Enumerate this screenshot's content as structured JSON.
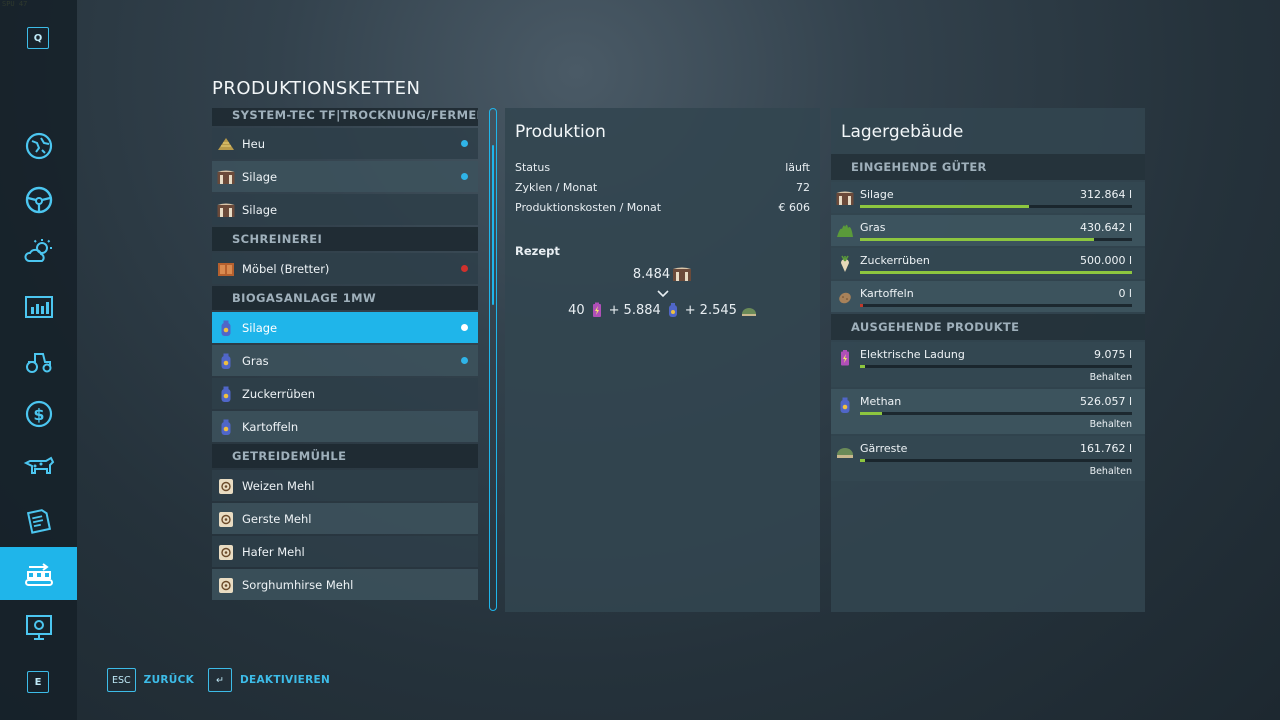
{
  "fps_overlay": "47",
  "sidebar": {
    "top_key": "Q",
    "bottom_key": "E",
    "items": [
      {
        "icon": "map-icon"
      },
      {
        "icon": "steering-wheel-icon"
      },
      {
        "icon": "weather-icon"
      },
      {
        "icon": "statistics-icon"
      },
      {
        "icon": "tractor-icon"
      },
      {
        "icon": "finance-icon"
      },
      {
        "icon": "animals-icon"
      },
      {
        "icon": "contracts-icon"
      },
      {
        "icon": "production-chains-icon",
        "active": true
      },
      {
        "icon": "help-icon"
      }
    ]
  },
  "page_title": "PRODUKTIONSKETTEN",
  "chain_list": {
    "sections": [
      {
        "title": "SYSTEM-TEC TF|TROCKNUNG/FERMEN...",
        "items": [
          {
            "label": "Heu",
            "icon": "hay-icon",
            "status": "blue"
          },
          {
            "label": "Silage",
            "icon": "silage-icon",
            "status": "blue"
          },
          {
            "label": "Silage",
            "icon": "silage-icon",
            "status": ""
          }
        ]
      },
      {
        "title": "SCHREINEREI",
        "items": [
          {
            "label": "Möbel (Bretter)",
            "icon": "furniture-icon",
            "status": "red"
          }
        ]
      },
      {
        "title": "BIOGASANLAGE 1MW",
        "items": [
          {
            "label": "Silage",
            "icon": "methane-icon",
            "status": "white",
            "selected": true
          },
          {
            "label": "Gras",
            "icon": "methane-icon",
            "status": "blue"
          },
          {
            "label": "Zuckerrüben",
            "icon": "methane-icon",
            "status": ""
          },
          {
            "label": "Kartoffeln",
            "icon": "methane-icon",
            "status": ""
          }
        ]
      },
      {
        "title": "GETREIDEMÜHLE",
        "items": [
          {
            "label": "Weizen Mehl",
            "icon": "flour-icon",
            "status": ""
          },
          {
            "label": "Gerste Mehl",
            "icon": "flour-icon",
            "status": ""
          },
          {
            "label": "Hafer Mehl",
            "icon": "flour-icon",
            "status": ""
          },
          {
            "label": "Sorghumhirse Mehl",
            "icon": "flour-icon",
            "status": ""
          }
        ]
      }
    ]
  },
  "production": {
    "title": "Produktion",
    "rows": [
      {
        "label": "Status",
        "value": "läuft"
      },
      {
        "label": "Zyklen / Monat",
        "value": "72"
      },
      {
        "label": "Produktionskosten / Monat",
        "value": "€ 606"
      }
    ],
    "recipe_label": "Rezept",
    "recipe_input": "8.484",
    "recipe_outputs": [
      {
        "amount": "40",
        "icon": "electric-charge-icon",
        "prefix": ""
      },
      {
        "amount": "5.884",
        "icon": "methane-icon",
        "prefix": "+"
      },
      {
        "amount": "2.545",
        "icon": "digestate-icon",
        "prefix": "+"
      }
    ]
  },
  "storage": {
    "title": "Lagergebäude",
    "incoming_header": "EINGEHENDE GÜTER",
    "incoming": [
      {
        "name": "Silage",
        "value": "312.864 l",
        "fill": 0.62,
        "icon": "silage-icon"
      },
      {
        "name": "Gras",
        "value": "430.642 l",
        "fill": 0.86,
        "icon": "grass-icon"
      },
      {
        "name": "Zuckerrüben",
        "value": "500.000 l",
        "fill": 1.0,
        "icon": "sugarbeet-icon"
      },
      {
        "name": "Kartoffeln",
        "value": "0 l",
        "fill": 0.0,
        "icon": "potato-icon"
      }
    ],
    "outgoing_header": "AUSGEHENDE PRODUKTE",
    "outgoing": [
      {
        "name": "Elektrische Ladung",
        "value": "9.075 l",
        "fill": 0.02,
        "mode": "Behalten",
        "icon": "electric-charge-icon"
      },
      {
        "name": "Methan",
        "value": "526.057 l",
        "fill": 0.08,
        "mode": "Behalten",
        "icon": "methane-icon"
      },
      {
        "name": "Gärreste",
        "value": "161.762 l",
        "fill": 0.02,
        "mode": "Behalten",
        "icon": "digestate-icon"
      }
    ]
  },
  "footer": {
    "back_key": "ESC",
    "back_label": "ZURÜCK",
    "toggle_key": "↵",
    "toggle_label": "DEAKTIVIEREN"
  },
  "colors": {
    "accent": "#1fb5ea",
    "fill_green": "#8dc63f",
    "dot_blue": "#2fb4e8",
    "dot_red": "#d0312d",
    "dot_white": "#ffffff"
  }
}
